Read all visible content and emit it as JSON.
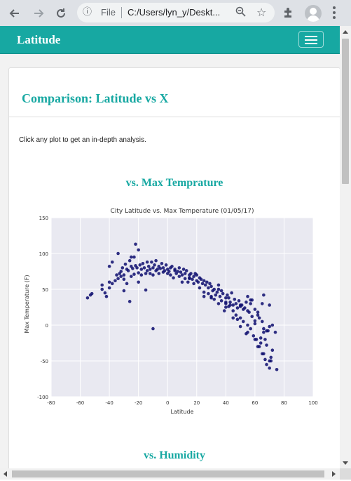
{
  "browser": {
    "file_label": "File",
    "url": "C:/Users/lyn_y/Deskt...",
    "icons": [
      "back-icon",
      "forward-icon",
      "reload-icon",
      "info-icon",
      "zoom-icon",
      "star-icon",
      "extensions-icon",
      "avatar",
      "menu-icon"
    ]
  },
  "navbar": {
    "brand": "Latitude",
    "accent": "#17a8a2"
  },
  "card": {
    "title": "Comparison: Latitude vs X",
    "intro": "Click any plot to get an in-depth analysis."
  },
  "sections": [
    {
      "title": "vs. Max Temprature"
    },
    {
      "title": "vs. Humidity"
    }
  ],
  "chart_data": {
    "type": "scatter",
    "title": "City Latitude vs. Max Temperature (01/05/17)",
    "xlabel": "Latitude",
    "ylabel": "Max Temperature (F)",
    "xlim": [
      -80,
      100
    ],
    "ylim": [
      -100,
      150
    ],
    "xticks": [
      -80,
      -60,
      -40,
      -20,
      0,
      20,
      40,
      60,
      80,
      100
    ],
    "yticks": [
      -100,
      -50,
      0,
      50,
      100,
      150
    ],
    "grid": true,
    "marker_color": "#0d0d6e",
    "background": "#e9e9f1",
    "x": [
      -55,
      -53,
      -52,
      -45,
      -45,
      -43,
      -42,
      -40,
      -40,
      -38,
      -38,
      -36,
      -35,
      -34,
      -34,
      -33,
      -32,
      -32,
      -31,
      -30,
      -30,
      -29,
      -28,
      -28,
      -27,
      -26,
      -25,
      -25,
      -24,
      -23,
      -23,
      -22,
      -22,
      -21,
      -20,
      -20,
      -19,
      -18,
      -18,
      -17,
      -16,
      -15,
      -14,
      -14,
      -13,
      -12,
      -12,
      -11,
      -10,
      -10,
      -9,
      -8,
      -8,
      -7,
      -6,
      -6,
      -5,
      -4,
      -3,
      -3,
      -2,
      -1,
      0,
      0,
      1,
      2,
      2,
      3,
      4,
      5,
      5,
      6,
      7,
      8,
      8,
      9,
      10,
      11,
      12,
      12,
      13,
      14,
      15,
      15,
      16,
      17,
      18,
      18,
      19,
      20,
      20,
      21,
      22,
      22,
      23,
      24,
      25,
      25,
      26,
      27,
      28,
      28,
      29,
      30,
      30,
      31,
      32,
      32,
      33,
      34,
      35,
      35,
      36,
      37,
      37,
      38,
      39,
      40,
      40,
      41,
      42,
      42,
      43,
      44,
      45,
      45,
      46,
      47,
      47,
      48,
      49,
      50,
      50,
      51,
      52,
      52,
      53,
      54,
      55,
      55,
      56,
      57,
      57,
      58,
      59,
      60,
      60,
      61,
      62,
      62,
      63,
      64,
      65,
      65,
      66,
      67,
      67,
      68,
      69,
      70,
      70,
      71,
      72,
      -30,
      -26,
      -15,
      -10,
      -40,
      -25,
      -20,
      10,
      15,
      25,
      30,
      40,
      45,
      48,
      55,
      60,
      63,
      66,
      70,
      75,
      50,
      55,
      58,
      62,
      66,
      68,
      40,
      35,
      43,
      50,
      54,
      57,
      60,
      64,
      66,
      68,
      70,
      72,
      74,
      65,
      71
    ],
    "y": [
      38,
      42,
      44,
      50,
      56,
      45,
      40,
      52,
      60,
      58,
      88,
      62,
      70,
      65,
      100,
      72,
      75,
      68,
      80,
      70,
      64,
      85,
      78,
      58,
      76,
      90,
      82,
      68,
      79,
      95,
      71,
      83,
      113,
      80,
      105,
      73,
      84,
      78,
      70,
      86,
      80,
      72,
      88,
      76,
      82,
      72,
      78,
      88,
      80,
      70,
      84,
      76,
      90,
      78,
      82,
      72,
      79,
      86,
      74,
      80,
      76,
      84,
      78,
      72,
      75,
      80,
      70,
      82,
      66,
      78,
      76,
      72,
      75,
      80,
      68,
      74,
      70,
      78,
      65,
      72,
      76,
      60,
      70,
      66,
      72,
      64,
      68,
      58,
      72,
      62,
      70,
      60,
      66,
      52,
      64,
      58,
      62,
      46,
      56,
      60,
      44,
      52,
      58,
      40,
      54,
      48,
      36,
      50,
      42,
      46,
      30,
      56,
      40,
      48,
      34,
      44,
      20,
      38,
      30,
      42,
      26,
      38,
      32,
      45,
      20,
      28,
      36,
      14,
      30,
      24,
      34,
      10,
      26,
      28,
      22,
      5,
      24,
      32,
      0,
      20,
      18,
      -5,
      30,
      12,
      -15,
      22,
      6,
      -20,
      14,
      -30,
      10,
      -25,
      5,
      -40,
      -10,
      -48,
      -20,
      -55,
      -8,
      -60,
      -2,
      -50,
      -35,
      48,
      33,
      49,
      -5,
      82,
      95,
      60,
      60,
      65,
      40,
      38,
      25,
      10,
      8,
      -10,
      -20,
      -30,
      -40,
      -50,
      -62,
      28,
      40,
      35,
      18,
      -5,
      -28,
      32,
      50,
      28,
      -2,
      -12,
      35,
      2,
      -18,
      42,
      -8,
      28,
      0,
      -10,
      30,
      -45
    ]
  }
}
